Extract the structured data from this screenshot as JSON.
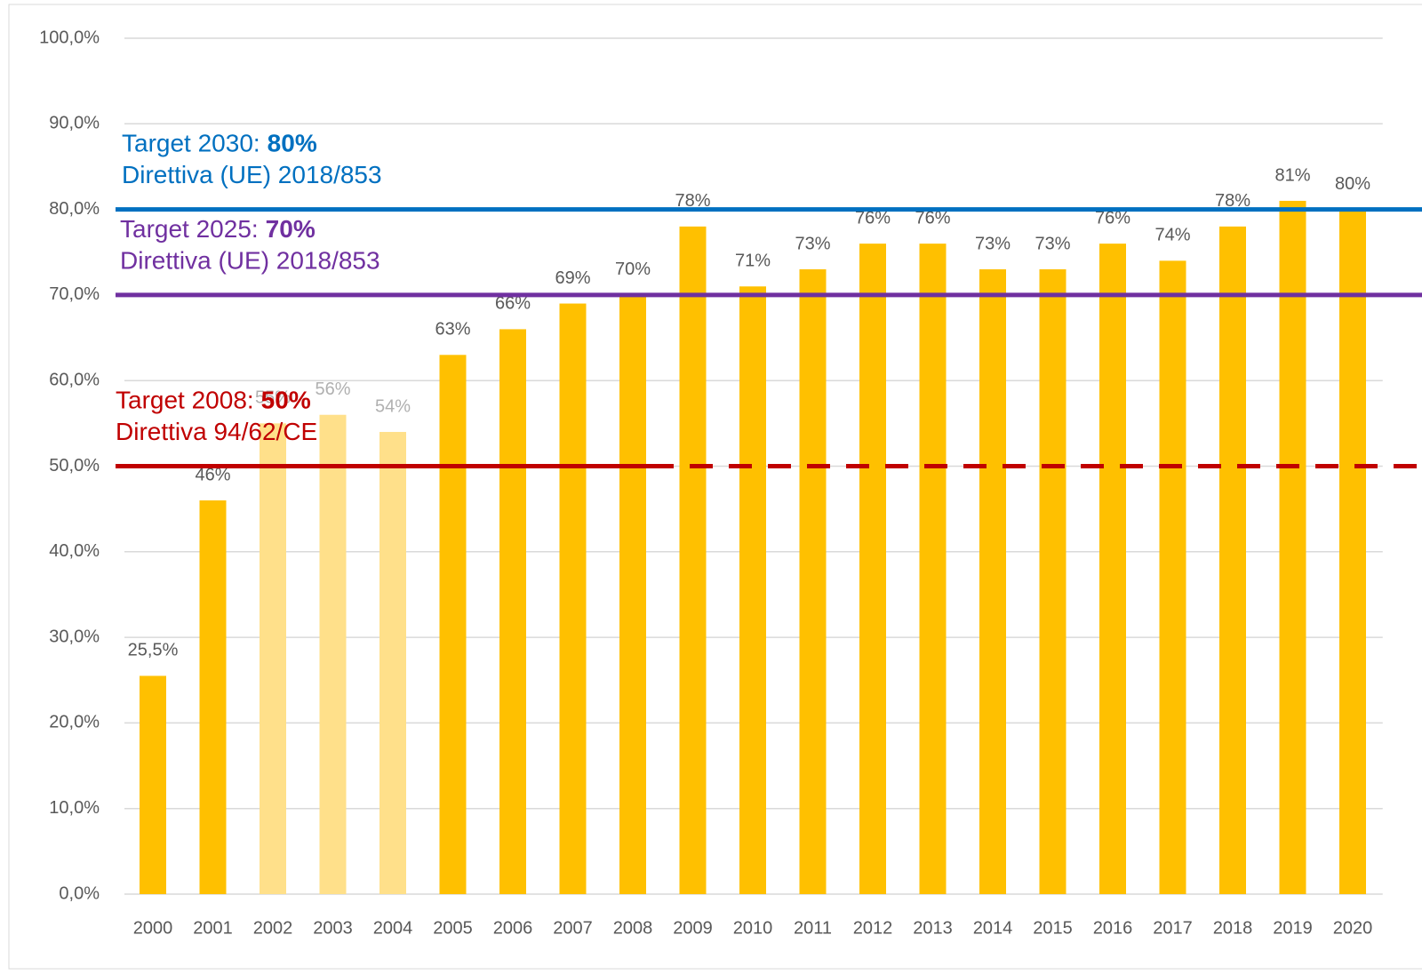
{
  "chart_data": {
    "type": "bar",
    "categories": [
      "2000",
      "2001",
      "2002",
      "2003",
      "2004",
      "2005",
      "2006",
      "2007",
      "2008",
      "2009",
      "2010",
      "2011",
      "2012",
      "2013",
      "2014",
      "2015",
      "2016",
      "2017",
      "2018",
      "2019",
      "2020"
    ],
    "values": [
      25.5,
      46,
      55,
      56,
      54,
      63,
      66,
      69,
      70,
      78,
      71,
      73,
      76,
      76,
      73,
      73,
      76,
      74,
      78,
      81,
      80
    ],
    "value_labels": [
      "25,5%",
      "46%",
      "55%",
      "56%",
      "54%",
      "63%",
      "66%",
      "69%",
      "70%",
      "78%",
      "71%",
      "73%",
      "76%",
      "76%",
      "73%",
      "73%",
      "76%",
      "74%",
      "78%",
      "81%",
      "80%"
    ],
    "colors": [
      "#ffc000",
      "#ffc000",
      "#ffe08a",
      "#ffe08a",
      "#ffe08a",
      "#ffc000",
      "#ffc000",
      "#ffc000",
      "#ffc000",
      "#ffc000",
      "#ffc000",
      "#ffc000",
      "#ffc000",
      "#ffc000",
      "#ffc000",
      "#ffc000",
      "#ffc000",
      "#ffc000",
      "#ffc000",
      "#ffc000",
      "#ffc000"
    ],
    "label_colors": [
      "#595959",
      "#595959",
      "#b0b0b0",
      "#b0b0b0",
      "#b0b0b0",
      "#595959",
      "#595959",
      "#595959",
      "#595959",
      "#595959",
      "#595959",
      "#595959",
      "#595959",
      "#595959",
      "#595959",
      "#595959",
      "#595959",
      "#595959",
      "#595959",
      "#595959",
      "#595959"
    ],
    "ylim": [
      0,
      100
    ],
    "yticks": [
      {
        "value": 0,
        "label": "0,0%"
      },
      {
        "value": 10,
        "label": "10,0%"
      },
      {
        "value": 20,
        "label": "20,0%"
      },
      {
        "value": 30,
        "label": "30,0%"
      },
      {
        "value": 40,
        "label": "40,0%"
      },
      {
        "value": 50,
        "label": "50,0%"
      },
      {
        "value": 60,
        "label": "60,0%"
      },
      {
        "value": 70,
        "label": "70,0%"
      },
      {
        "value": 80,
        "label": "80,0%"
      },
      {
        "value": 90,
        "label": "90,0%"
      },
      {
        "value": 100,
        "label": "100,0%"
      }
    ],
    "grid": true,
    "reference_lines": [
      {
        "value": 80,
        "label": "Target 2030:",
        "value_label": "80%",
        "source": "Direttiva (UE) 2018/853",
        "color": "#0070c0",
        "solid_until": null
      },
      {
        "value": 70,
        "label": "Target 2025:",
        "value_label": "70%",
        "source": "Direttiva (UE) 2018/853",
        "color": "#7030a0",
        "solid_until": null
      },
      {
        "value": 50,
        "label": "Target 2008:",
        "value_label": "50%",
        "source": "Direttiva 94/62/CE",
        "color": "#c00000",
        "solid_until": "2008"
      }
    ]
  }
}
